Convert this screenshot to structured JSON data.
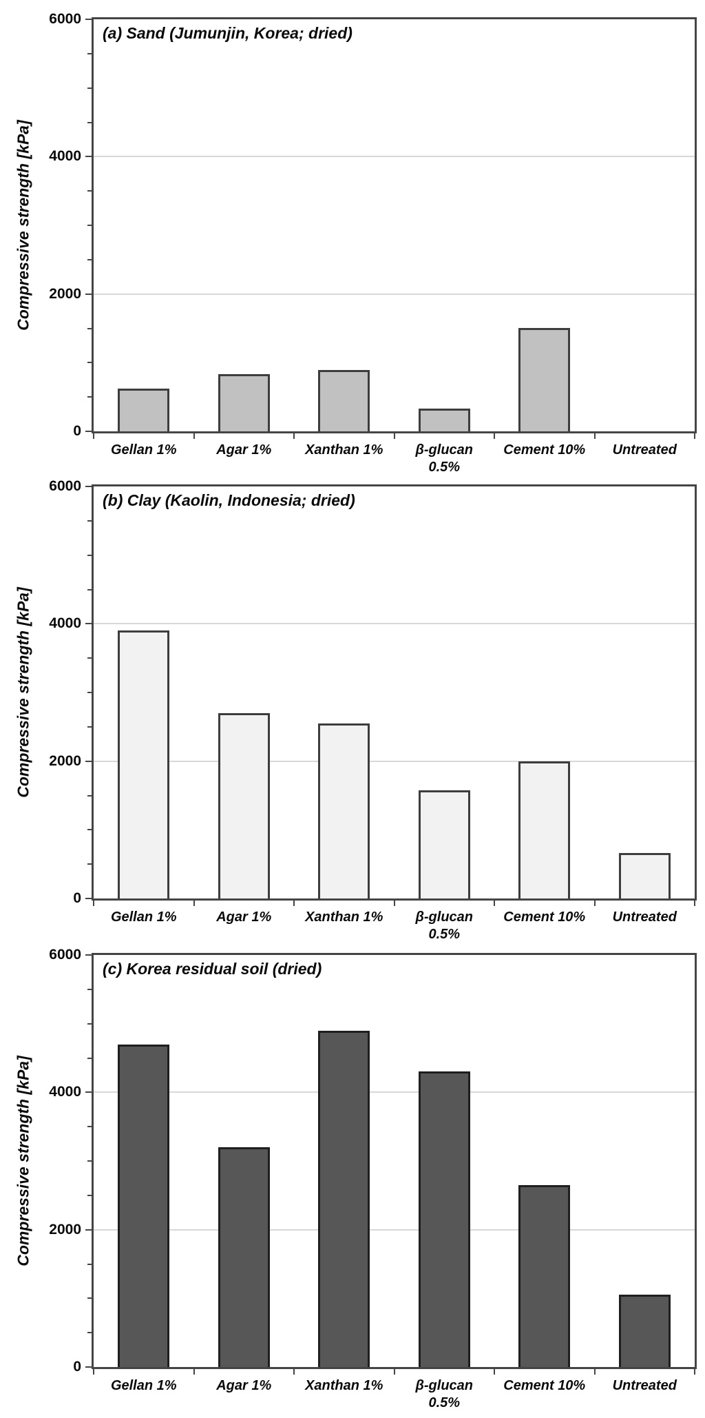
{
  "figure": {
    "background": "#ffffff",
    "axis_color": "#454545",
    "grid_color": "#d8d8d8",
    "text_color": "#0a0a0a"
  },
  "chart_data": [
    {
      "type": "bar",
      "panel": "a",
      "title": "(a) Sand (Jumunjin, Korea; dried)",
      "ylabel": "Compressive strength [kPa]",
      "xlabel": "",
      "categories": [
        "Gellan 1%",
        "Agar 1%",
        "Xanthan 1%",
        "β-glucan\n0.5%",
        "Cement 10%",
        "Untreated"
      ],
      "values": [
        620,
        830,
        890,
        330,
        1500,
        0
      ],
      "ylim": [
        0,
        6000
      ],
      "yticks": [
        0,
        2000,
        4000,
        6000
      ],
      "gridlines": [
        2000,
        4000
      ],
      "minor_tick_step": 500,
      "grid": "horizontal-major",
      "legend": "none",
      "bar_fill": "#c1c1c1",
      "bar_border": "#3d3d3d"
    },
    {
      "type": "bar",
      "panel": "b",
      "title": "(b) Clay (Kaolin, Indonesia; dried)",
      "ylabel": "Compressive strength [kPa]",
      "xlabel": "",
      "categories": [
        "Gellan 1%",
        "Agar 1%",
        "Xanthan 1%",
        "β-glucan\n0.5%",
        "Cement 10%",
        "Untreated"
      ],
      "values": [
        3900,
        2700,
        2550,
        1580,
        2000,
        660
      ],
      "ylim": [
        0,
        6000
      ],
      "yticks": [
        0,
        2000,
        4000,
        6000
      ],
      "gridlines": [
        2000,
        4000
      ],
      "minor_tick_step": 500,
      "grid": "horizontal-major",
      "legend": "none",
      "bar_fill": "#f2f2f2",
      "bar_border": "#3d3d3d"
    },
    {
      "type": "bar",
      "panel": "c",
      "title": "(c) Korea residual soil (dried)",
      "ylabel": "Compressive strength [kPa]",
      "xlabel": "",
      "categories": [
        "Gellan 1%",
        "Agar 1%",
        "Xanthan 1%",
        "β-glucan\n0.5%",
        "Cement 10%",
        "Untreated"
      ],
      "values": [
        4700,
        3200,
        4900,
        4300,
        2650,
        1050
      ],
      "ylim": [
        0,
        6000
      ],
      "yticks": [
        0,
        2000,
        4000,
        6000
      ],
      "gridlines": [
        2000,
        4000
      ],
      "minor_tick_step": 500,
      "grid": "horizontal-major",
      "legend": "none",
      "bar_fill": "#575757",
      "bar_border": "#1f1f1f"
    }
  ]
}
